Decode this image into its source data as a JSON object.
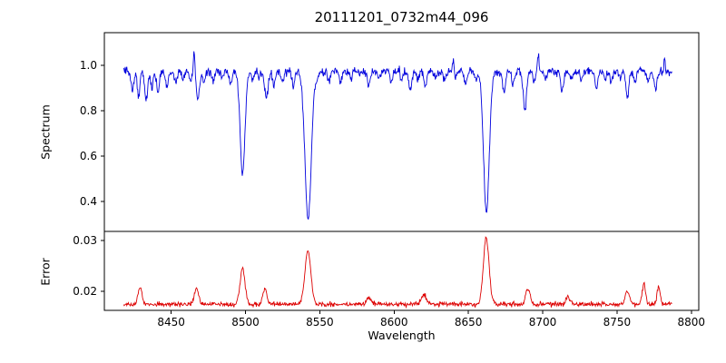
{
  "page": {
    "background": "#ffffff"
  },
  "chart_data": {
    "type": "line",
    "title": "20111201_0732m44_096",
    "xlabel": "Wavelength",
    "xlim": [
      8405,
      8805
    ],
    "x_data_range": [
      8418,
      8787
    ],
    "x_ticks": {
      "values": [
        8450,
        8500,
        8550,
        8600,
        8650,
        8700,
        8750,
        8800
      ],
      "labels": [
        "8450",
        "8500",
        "8550",
        "8600",
        "8650",
        "8700",
        "8750",
        "8800"
      ]
    },
    "grid": false,
    "legend": "none",
    "panels": [
      {
        "name": "spectrum",
        "ylabel": "Spectrum",
        "color": "#0000dd",
        "ylim": [
          0.268,
          1.144
        ],
        "y_ticks": {
          "values": [
            0.4,
            0.6,
            0.8,
            1.0
          ],
          "labels": [
            "0.4",
            "0.6",
            "0.8",
            "1.0"
          ]
        },
        "continuum": 0.972,
        "noise_sigma": 0.009,
        "major_lines": [
          {
            "c": 8498.0,
            "f": 0.52,
            "w": 1.6
          },
          {
            "c": 8542.1,
            "f": 0.32,
            "w": 2.1
          },
          {
            "c": 8662.1,
            "f": 0.35,
            "w": 1.9
          }
        ],
        "minor_lines": [
          {
            "c": 8424,
            "f": 0.89,
            "w": 0.9
          },
          {
            "c": 8428,
            "f": 0.86,
            "w": 0.8
          },
          {
            "c": 8433,
            "f": 0.84,
            "w": 1.0
          },
          {
            "c": 8437,
            "f": 0.9,
            "w": 0.8
          },
          {
            "c": 8441,
            "f": 0.88,
            "w": 0.9
          },
          {
            "c": 8447,
            "f": 0.9,
            "w": 0.8
          },
          {
            "c": 8453,
            "f": 0.92,
            "w": 0.8
          },
          {
            "c": 8458,
            "f": 0.94,
            "w": 0.8
          },
          {
            "c": 8463,
            "f": 0.93,
            "w": 0.7
          },
          {
            "c": 8468,
            "f": 0.85,
            "w": 1.1
          },
          {
            "c": 8472,
            "f": 0.93,
            "w": 0.8
          },
          {
            "c": 8478,
            "f": 0.92,
            "w": 0.8
          },
          {
            "c": 8484,
            "f": 0.94,
            "w": 0.8
          },
          {
            "c": 8490,
            "f": 0.92,
            "w": 0.8
          },
          {
            "c": 8505,
            "f": 0.93,
            "w": 0.8
          },
          {
            "c": 8509,
            "f": 0.94,
            "w": 0.7
          },
          {
            "c": 8514,
            "f": 0.86,
            "w": 1.2
          },
          {
            "c": 8519,
            "f": 0.91,
            "w": 0.8
          },
          {
            "c": 8525,
            "f": 0.93,
            "w": 0.8
          },
          {
            "c": 8532,
            "f": 0.91,
            "w": 0.9
          },
          {
            "c": 8548,
            "f": 0.94,
            "w": 0.8
          },
          {
            "c": 8556,
            "f": 0.93,
            "w": 0.8
          },
          {
            "c": 8564,
            "f": 0.92,
            "w": 0.8
          },
          {
            "c": 8571,
            "f": 0.94,
            "w": 0.8
          },
          {
            "c": 8583,
            "f": 0.91,
            "w": 0.9
          },
          {
            "c": 8590,
            "f": 0.94,
            "w": 0.8
          },
          {
            "c": 8598,
            "f": 0.92,
            "w": 0.9
          },
          {
            "c": 8605,
            "f": 0.94,
            "w": 0.8
          },
          {
            "c": 8611,
            "f": 0.89,
            "w": 1.0
          },
          {
            "c": 8616,
            "f": 0.93,
            "w": 0.8
          },
          {
            "c": 8621,
            "f": 0.91,
            "w": 0.9
          },
          {
            "c": 8628,
            "f": 0.94,
            "w": 0.8
          },
          {
            "c": 8634,
            "f": 0.93,
            "w": 0.8
          },
          {
            "c": 8641,
            "f": 0.94,
            "w": 0.8
          },
          {
            "c": 8648,
            "f": 0.92,
            "w": 0.9
          },
          {
            "c": 8655,
            "f": 0.94,
            "w": 0.8
          },
          {
            "c": 8674,
            "f": 0.88,
            "w": 1.0
          },
          {
            "c": 8680,
            "f": 0.92,
            "w": 0.8
          },
          {
            "c": 8688,
            "f": 0.8,
            "w": 1.1
          },
          {
            "c": 8694,
            "f": 0.93,
            "w": 0.8
          },
          {
            "c": 8702,
            "f": 0.94,
            "w": 0.8
          },
          {
            "c": 8713,
            "f": 0.89,
            "w": 1.0
          },
          {
            "c": 8719,
            "f": 0.93,
            "w": 0.8
          },
          {
            "c": 8726,
            "f": 0.94,
            "w": 0.8
          },
          {
            "c": 8736,
            "f": 0.9,
            "w": 0.9
          },
          {
            "c": 8742,
            "f": 0.94,
            "w": 0.8
          },
          {
            "c": 8746,
            "f": 0.92,
            "w": 0.8
          },
          {
            "c": 8752,
            "f": 0.94,
            "w": 0.8
          },
          {
            "c": 8757,
            "f": 0.86,
            "w": 1.0
          },
          {
            "c": 8762,
            "f": 0.92,
            "w": 0.8
          },
          {
            "c": 8771,
            "f": 0.93,
            "w": 0.8
          },
          {
            "c": 8776,
            "f": 0.9,
            "w": 0.9
          }
        ],
        "spikes": [
          {
            "c": 8465.5,
            "f": 1.06,
            "w": 0.5
          },
          {
            "c": 8640.0,
            "f": 1.03,
            "w": 0.6
          },
          {
            "c": 8697.0,
            "f": 1.035,
            "w": 0.6
          },
          {
            "c": 8782.0,
            "f": 1.03,
            "w": 0.5
          }
        ]
      },
      {
        "name": "error",
        "ylabel": "Error",
        "color": "#dd0000",
        "ylim": [
          0.0163,
          0.0318
        ],
        "y_ticks": {
          "values": [
            0.02,
            0.03
          ],
          "labels": [
            "0.02",
            "0.03"
          ]
        },
        "baseline": 0.0175,
        "noise_sigma": 0.00022,
        "peaks": [
          {
            "c": 8429,
            "h": 0.0208,
            "w": 1.4
          },
          {
            "c": 8467,
            "h": 0.0208,
            "w": 1.4
          },
          {
            "c": 8498,
            "h": 0.0245,
            "w": 1.7
          },
          {
            "c": 8513,
            "h": 0.0205,
            "w": 1.4
          },
          {
            "c": 8542,
            "h": 0.028,
            "w": 2.0
          },
          {
            "c": 8583,
            "h": 0.0188,
            "w": 1.6
          },
          {
            "c": 8620,
            "h": 0.0192,
            "w": 1.8
          },
          {
            "c": 8662,
            "h": 0.0305,
            "w": 1.9
          },
          {
            "c": 8690,
            "h": 0.0205,
            "w": 1.5
          },
          {
            "c": 8717,
            "h": 0.019,
            "w": 1.4
          },
          {
            "c": 8757,
            "h": 0.02,
            "w": 1.4
          },
          {
            "c": 8768,
            "h": 0.0215,
            "w": 1.1
          },
          {
            "c": 8778,
            "h": 0.021,
            "w": 1.1
          }
        ]
      }
    ]
  }
}
